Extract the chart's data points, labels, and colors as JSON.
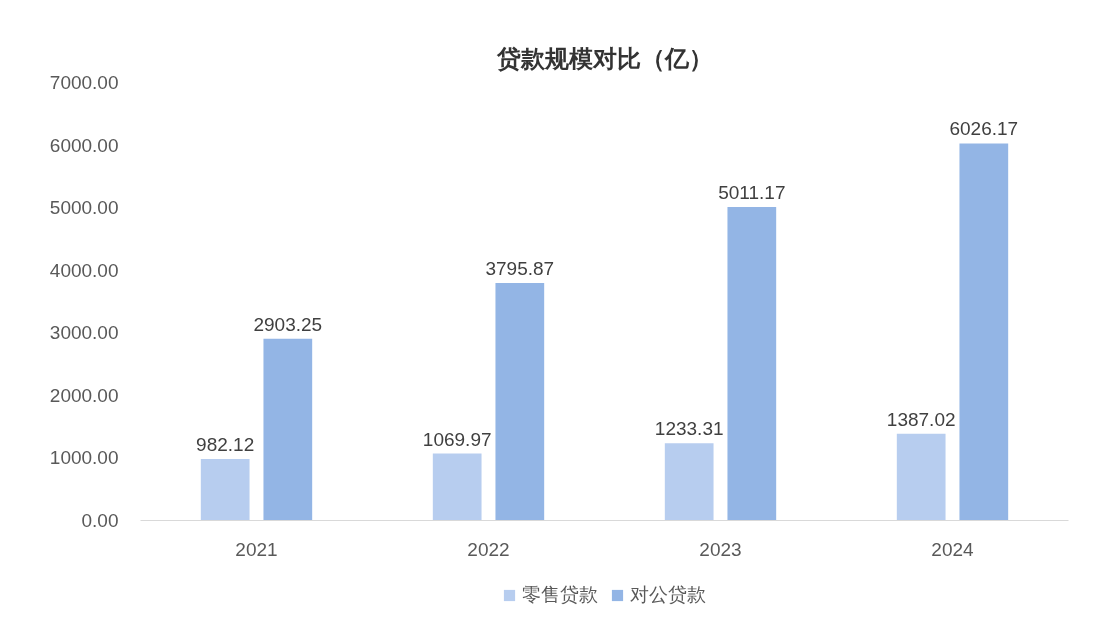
{
  "chart_data": {
    "type": "bar",
    "title": "贷款规模对比（亿）",
    "categories": [
      "2021",
      "2022",
      "2023",
      "2024"
    ],
    "series": [
      {
        "name": "零售贷款",
        "color": "#b7cdef",
        "values": [
          982.12,
          1069.97,
          1233.31,
          1387.02
        ]
      },
      {
        "name": "对公贷款",
        "color": "#93b5e5",
        "values": [
          2903.25,
          3795.87,
          5011.17,
          6026.17
        ]
      }
    ],
    "ylim": [
      0,
      7000
    ],
    "yticks": [
      {
        "value": 0,
        "label": "0.00"
      },
      {
        "value": 1000,
        "label": "1000.00"
      },
      {
        "value": 2000,
        "label": "2000.00"
      },
      {
        "value": 3000,
        "label": "3000.00"
      },
      {
        "value": 4000,
        "label": "4000.00"
      },
      {
        "value": 5000,
        "label": "5000.00"
      },
      {
        "value": 6000,
        "label": "6000.00"
      },
      {
        "value": 7000,
        "label": "7000.00"
      }
    ],
    "grid": false,
    "legend": "bottom",
    "data_labels": true
  }
}
